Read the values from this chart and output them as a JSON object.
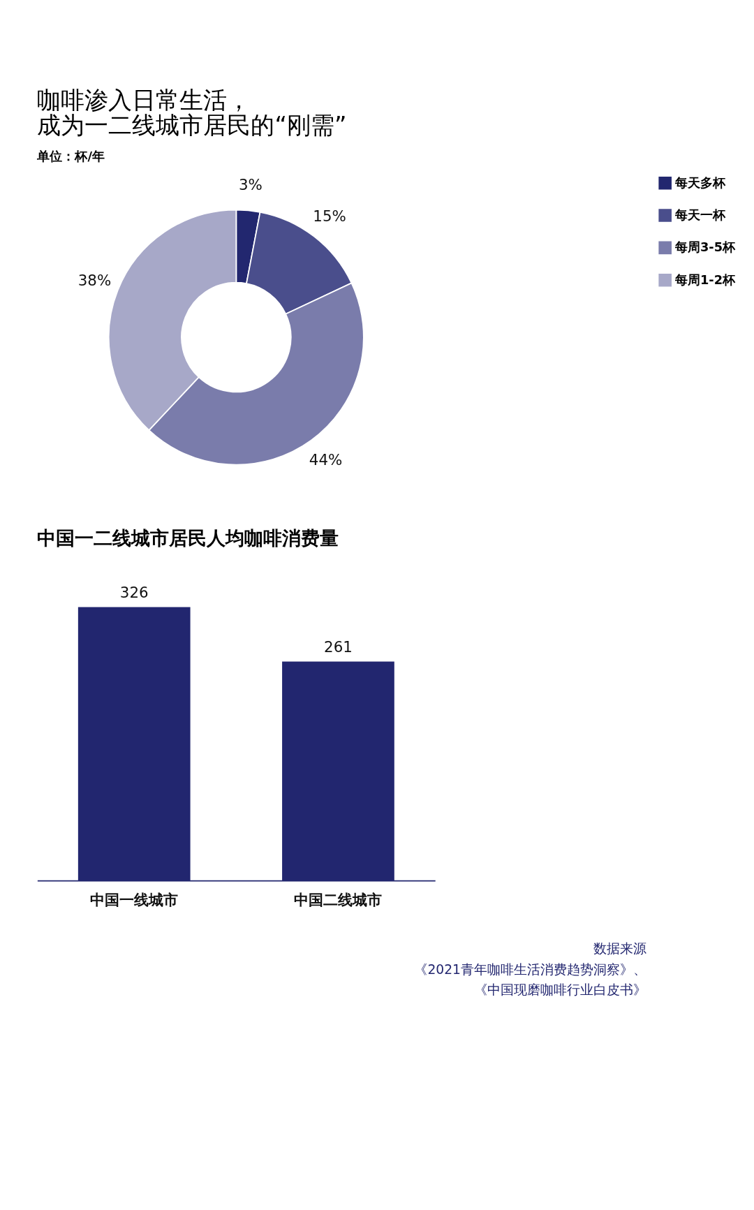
{
  "chart_data": [
    {
      "type": "donut",
      "title": [
        "咖啡渗入日常生活，",
        "成为一二线城市居民的“刚需”"
      ],
      "subtitle": "单位：杯/年",
      "categories": [
        "每天多杯",
        "每天一杯",
        "每周3-5杯",
        "每周1-2杯"
      ],
      "values": [
        3,
        15,
        44,
        38
      ],
      "value_labels": [
        "3%",
        "15%",
        "44%",
        "38%"
      ],
      "colors": [
        "#22276f",
        "#4a4e8c",
        "#7a7cab",
        "#a7a8c8"
      ],
      "legend": "right"
    },
    {
      "type": "bar",
      "title": "中国一二线城市居民人均咖啡消费量",
      "categories": [
        "中国一线城市",
        "中国二线城市"
      ],
      "values": [
        326,
        261
      ],
      "color": "#22266f",
      "data_labels": true,
      "tick_labels": "x",
      "annotations": [
        "数据来源",
        "《2021青年咖啡生活消费趋势洞察》、",
        "《中国现磨咖啡行业白皮书》"
      ]
    }
  ]
}
